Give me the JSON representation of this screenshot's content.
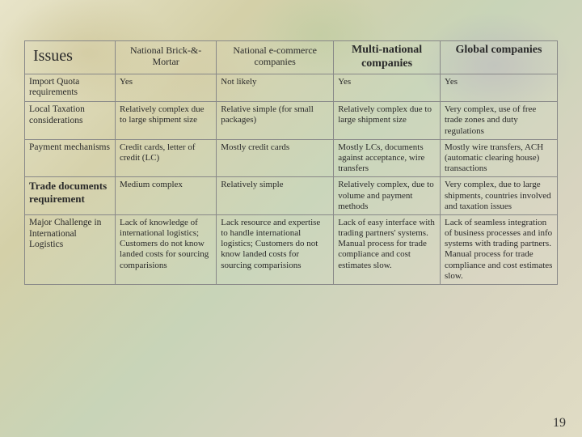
{
  "table": {
    "columns": [
      {
        "label": "Issues",
        "bold": true,
        "class": "issues-header"
      },
      {
        "label": "National Brick-&-Mortar",
        "bold": false,
        "class": "col-header"
      },
      {
        "label": "National e-commerce companies",
        "bold": false,
        "class": "col-header"
      },
      {
        "label": "Multi-national companies",
        "bold": true,
        "class": "bold-header"
      },
      {
        "label": "Global companies",
        "bold": false,
        "class": "bold-header"
      }
    ],
    "rows": [
      {
        "label": "Import Quota requirements",
        "bold": false,
        "cells": [
          "Yes",
          "Not likely",
          "Yes",
          "Yes"
        ]
      },
      {
        "label": "Local Taxation considerations",
        "bold": false,
        "cells": [
          "Relatively complex due to large shipment size",
          "Relative simple (for small packages)",
          "Relatively complex due to large shipment size",
          "Very complex, use of free trade zones and duty regulations"
        ]
      },
      {
        "label": "Payment mechanisms",
        "bold": false,
        "cells": [
          "Credit cards, letter of credit (LC)",
          "Mostly credit cards",
          "Mostly LCs, documents against acceptance, wire transfers",
          "Mostly wire transfers, ACH (automatic clearing house) transactions"
        ]
      },
      {
        "label": "Trade documents requirement",
        "bold": true,
        "cells": [
          "Medium complex",
          "Relatively simple",
          "Relatively complex, due to volume and payment methods",
          "Very complex, due to large shipments, countries involved and taxation issues"
        ]
      },
      {
        "label": "Major Challenge in International Logistics",
        "bold": false,
        "cells": [
          "Lack of knowledge of international logistics; Customers do not know landed costs for sourcing comparisions",
          "Lack resource and expertise to handle international logistics; Customers do not know landed costs for sourcing comparisions",
          "Lack of easy interface with trading partners' systems. Manual process for trade compliance and cost estimates slow.",
          "Lack of seamless integration of business processes and info systems with trading partners. Manual process for trade compliance and cost estimates slow."
        ]
      }
    ]
  },
  "page_number": "19"
}
